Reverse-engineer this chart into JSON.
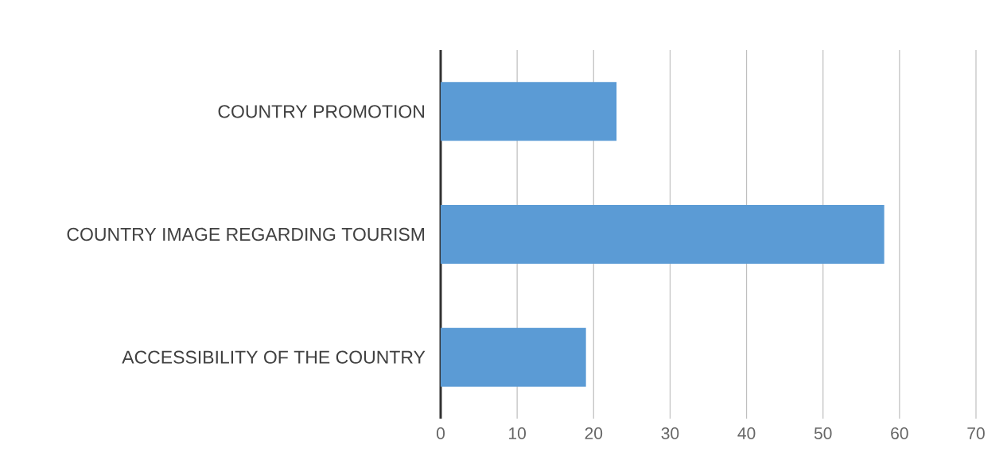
{
  "chart_data": {
    "type": "bar",
    "orientation": "horizontal",
    "categories": [
      "COUNTRY PROMOTION",
      "COUNTRY IMAGE REGARDING TOURISM",
      "ACCESSIBILITY OF THE COUNTRY"
    ],
    "values": [
      23,
      58,
      19
    ],
    "color": "#5b9bd5",
    "xlim": [
      0,
      70
    ],
    "xticks": [
      0,
      10,
      20,
      30,
      40,
      50,
      60,
      70
    ],
    "grid": "x"
  }
}
